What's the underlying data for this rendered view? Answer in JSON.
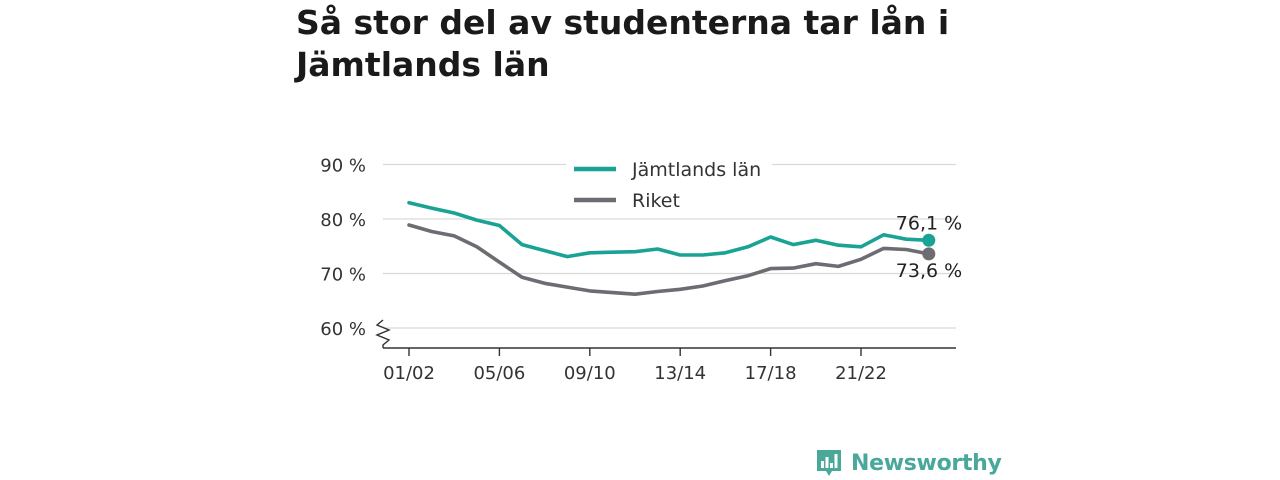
{
  "title": "Så stor del av studenterna tar lån i Jämtlands län",
  "brand": {
    "name": "Newsworthy",
    "icon": "bar-chart-bubble-icon",
    "color": "#4aa89a"
  },
  "chart_data": {
    "type": "line",
    "title": "Så stor del av studenterna tar lån i Jämtlands län",
    "xlabel": "",
    "ylabel": "",
    "ylim": [
      56,
      93
    ],
    "yticks": [
      60,
      70,
      80,
      90
    ],
    "ytick_labels": [
      "60 %",
      "70 %",
      "80 %",
      "90 %"
    ],
    "x": [
      "01/02",
      "02/03",
      "03/04",
      "04/05",
      "05/06",
      "06/07",
      "07/08",
      "08/09",
      "09/10",
      "10/11",
      "11/12",
      "12/13",
      "13/14",
      "14/15",
      "15/16",
      "16/17",
      "17/18",
      "18/19",
      "19/20",
      "20/21",
      "21/22",
      "22/23",
      "23/24",
      "24/25"
    ],
    "xtick_labels": [
      "01/02",
      "05/06",
      "09/10",
      "13/14",
      "17/18",
      "21/22"
    ],
    "axis_break": true,
    "grid": "horizontal",
    "legend_position": "top-center",
    "series": [
      {
        "name": "Jämtlands län",
        "color": "#1aa395",
        "values": [
          83.0,
          82.0,
          81.1,
          79.8,
          78.8,
          75.3,
          74.2,
          73.1,
          73.8,
          73.9,
          74.0,
          74.5,
          73.4,
          73.4,
          73.8,
          74.9,
          76.7,
          75.3,
          76.1,
          75.2,
          74.9,
          77.1,
          76.3,
          76.1
        ],
        "end_label": "76,1 %"
      },
      {
        "name": "Riket",
        "color": "#6d6c72",
        "values": [
          78.9,
          77.7,
          76.9,
          74.9,
          72.1,
          69.3,
          68.2,
          67.5,
          66.8,
          66.5,
          66.2,
          66.7,
          67.1,
          67.7,
          68.7,
          69.6,
          70.9,
          71.0,
          71.8,
          71.3,
          72.6,
          74.6,
          74.4,
          73.6
        ],
        "end_label": "73,6 %"
      }
    ]
  }
}
